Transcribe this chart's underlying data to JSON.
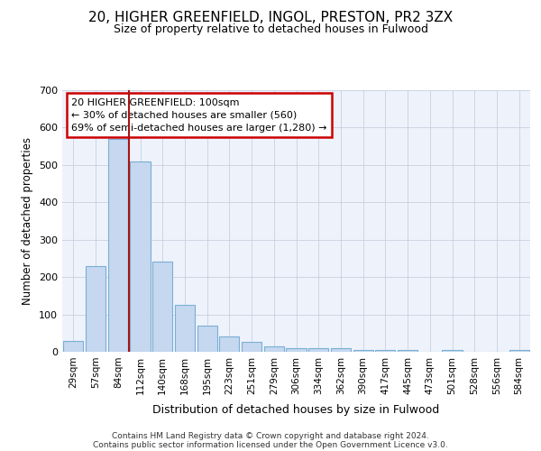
{
  "title1": "20, HIGHER GREENFIELD, INGOL, PRESTON, PR2 3ZX",
  "title2": "Size of property relative to detached houses in Fulwood",
  "xlabel": "Distribution of detached houses by size in Fulwood",
  "ylabel": "Number of detached properties",
  "bar_labels": [
    "29sqm",
    "57sqm",
    "84sqm",
    "112sqm",
    "140sqm",
    "168sqm",
    "195sqm",
    "223sqm",
    "251sqm",
    "279sqm",
    "306sqm",
    "334sqm",
    "362sqm",
    "390sqm",
    "417sqm",
    "445sqm",
    "473sqm",
    "501sqm",
    "528sqm",
    "556sqm",
    "584sqm"
  ],
  "bar_values": [
    28,
    230,
    570,
    510,
    242,
    125,
    70,
    40,
    27,
    15,
    10,
    10,
    10,
    5,
    5,
    5,
    0,
    5,
    0,
    0,
    5
  ],
  "bar_color": "#c5d8f0",
  "bar_edge_color": "#7aafd4",
  "bg_color": "#eef2fb",
  "grid_color": "#c8d0e0",
  "vline_color": "#aa1111",
  "vline_pos": 2.5,
  "annotation_text": "20 HIGHER GREENFIELD: 100sqm\n← 30% of detached houses are smaller (560)\n69% of semi-detached houses are larger (1,280) →",
  "annotation_box_color": "#ffffff",
  "annotation_box_edge_color": "#cc0000",
  "footnote1": "Contains HM Land Registry data © Crown copyright and database right 2024.",
  "footnote2": "Contains public sector information licensed under the Open Government Licence v3.0.",
  "ylim": [
    0,
    700
  ],
  "yticks": [
    0,
    100,
    200,
    300,
    400,
    500,
    600,
    700
  ]
}
